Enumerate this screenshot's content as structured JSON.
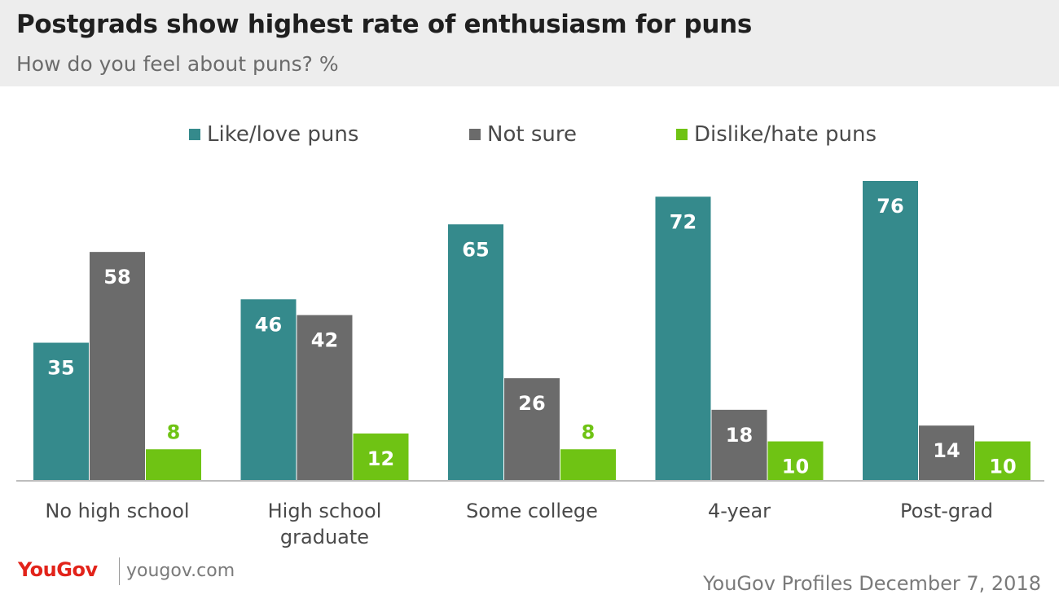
{
  "header": {
    "title": "Postgrads show highest rate of enthusiasm for puns",
    "subtitle": "How do you feel about puns? %"
  },
  "legend": [
    {
      "label": "Like/love puns",
      "color": "#358a8c"
    },
    {
      "label": "Not sure",
      "color": "#6b6b6b"
    },
    {
      "label": "Dislike/hate puns",
      "color": "#6fc314"
    }
  ],
  "chart_data": {
    "type": "bar",
    "title": "Postgrads show highest rate of enthusiasm for puns",
    "subtitle": "How do you feel about puns? %",
    "categories": [
      [
        "No high school"
      ],
      [
        "High school",
        "graduate"
      ],
      [
        "Some college"
      ],
      [
        "4-year"
      ],
      [
        "Post-grad"
      ]
    ],
    "series": [
      {
        "name": "Like/love puns",
        "color": "#358a8c",
        "values": [
          35,
          46,
          65,
          72,
          76
        ]
      },
      {
        "name": "Not sure",
        "color": "#6b6b6b",
        "values": [
          58,
          42,
          26,
          18,
          14
        ]
      },
      {
        "name": "Dislike/hate puns",
        "color": "#6fc314",
        "values": [
          8,
          12,
          8,
          10,
          10
        ]
      }
    ],
    "ylim": [
      0,
      80
    ],
    "grid": false,
    "legend_position": "top"
  },
  "footer": {
    "logo": "YouGov",
    "site": "yougov.com",
    "source": "YouGov Profiles December 7, 2018"
  }
}
